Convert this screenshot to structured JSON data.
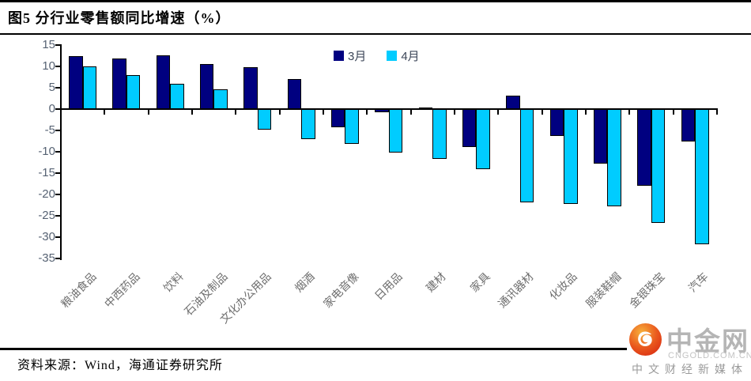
{
  "figure": {
    "title": "图5  分行业零售额同比增速（%）"
  },
  "footer": {
    "source_label": "资料来源：Wind，海通证券研究所"
  },
  "watermark": {
    "brand": "中金网",
    "domain": "CNGOLD.COM.CN",
    "tagline": "中文财经新媒体"
  },
  "colors": {
    "march_bar": "#000080",
    "april_bar": "#00CCFF",
    "bar_outline": "#000000",
    "axis": "#000000",
    "y_tick_label": "#566273",
    "category_label": "#6e6e6e",
    "logo_red": "#E03318",
    "logo_orange": "#F7A83A"
  },
  "chart_data": {
    "type": "bar",
    "title": "图5  分行业零售额同比增速（%）",
    "categories": [
      "粮油食品",
      "中西药品",
      "饮料",
      "石油及制品",
      "文化办公用品",
      "烟酒",
      "家电音像",
      "日用品",
      "建材",
      "家具",
      "通讯器材",
      "化妆品",
      "服装鞋帽",
      "金银珠宝",
      "汽车"
    ],
    "series": [
      {
        "name": "3月",
        "color": "#000080",
        "values": [
          12.5,
          11.9,
          12.6,
          10.5,
          9.8,
          7.0,
          -4.3,
          -0.8,
          0.4,
          -8.8,
          3.1,
          -6.3,
          -12.7,
          -17.9,
          -7.5
        ]
      },
      {
        "name": "4月",
        "color": "#00CCFF",
        "values": [
          10.0,
          7.9,
          6.0,
          4.7,
          -4.8,
          -7.0,
          -8.1,
          -10.2,
          -11.7,
          -14.0,
          -21.8,
          -22.3,
          -22.8,
          -26.7,
          -31.6
        ]
      }
    ],
    "xlabel": "",
    "ylabel": "",
    "ylim": [
      -35,
      15
    ],
    "yticks": [
      15,
      10,
      5,
      0,
      -5,
      -10,
      -15,
      -20,
      -25,
      -30,
      -35
    ],
    "grid": false,
    "legend_position": "top-center"
  }
}
